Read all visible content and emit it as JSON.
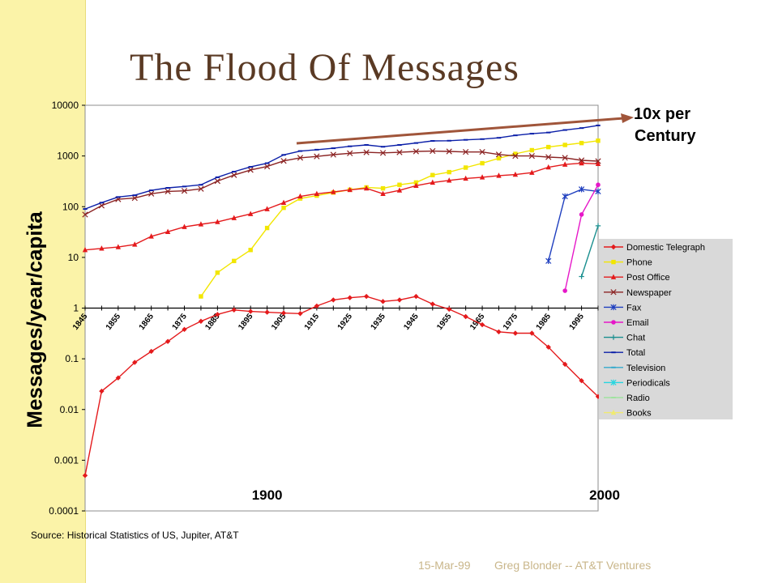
{
  "slide": {
    "title": "The Flood Of Messages",
    "source": "Source: Historical Statistics of US, Jupiter, AT&T",
    "date": "15-Mar-99",
    "author": "Greg Blonder -- AT&T Ventures",
    "annotation": [
      "10x per",
      "Century"
    ],
    "colors": {
      "band": "#fbf3a8",
      "title": "#5a3a24",
      "arrow": "#a0553a",
      "footer": "#c9b68a"
    }
  },
  "chart_data": {
    "type": "line",
    "ylabel": "Messages/year/capita",
    "yscale": "log",
    "ylim": [
      0.0001,
      10000
    ],
    "y_ticks": [
      "10000",
      "1000",
      "100",
      "10",
      "1",
      "0.1",
      "0.01",
      "0.001",
      "0.0001"
    ],
    "xlim": [
      1845,
      2000
    ],
    "x_ticks": [
      "1845",
      "1855",
      "1865",
      "1875",
      "1885",
      "1895",
      "1905",
      "1915",
      "1925",
      "1935",
      "1945",
      "1955",
      "1965",
      "1975",
      "1985",
      "1995"
    ],
    "x_big_labels": [
      "1900",
      "2000"
    ],
    "legend_position": "right",
    "series": [
      {
        "name": "Domestic Telegraph",
        "color": "#e41a1c",
        "marker": "diamond",
        "x": [
          1845,
          1850,
          1855,
          1860,
          1865,
          1870,
          1875,
          1880,
          1885,
          1890,
          1895,
          1900,
          1905,
          1910,
          1915,
          1920,
          1925,
          1930,
          1935,
          1940,
          1945,
          1950,
          1955,
          1960,
          1965,
          1970,
          1975,
          1980,
          1985,
          1990,
          1995,
          2000
        ],
        "y": [
          0.0005,
          0.023,
          0.042,
          0.085,
          0.14,
          0.22,
          0.38,
          0.55,
          0.75,
          0.92,
          0.86,
          0.83,
          0.8,
          0.78,
          1.1,
          1.45,
          1.6,
          1.7,
          1.35,
          1.45,
          1.7,
          1.2,
          0.95,
          0.68,
          0.47,
          0.34,
          0.32,
          0.32,
          0.17,
          0.078,
          0.037,
          0.018
        ]
      },
      {
        "name": "Phone",
        "color": "#f2e600",
        "marker": "square",
        "x": [
          1880,
          1885,
          1890,
          1895,
          1900,
          1905,
          1910,
          1915,
          1920,
          1925,
          1930,
          1935,
          1940,
          1945,
          1950,
          1955,
          1960,
          1965,
          1970,
          1975,
          1980,
          1985,
          1990,
          1995,
          2000
        ],
        "y": [
          1.7,
          5,
          8.5,
          14,
          38,
          95,
          145,
          165,
          190,
          215,
          240,
          230,
          270,
          300,
          420,
          480,
          590,
          720,
          900,
          1100,
          1300,
          1500,
          1650,
          1800,
          2000
        ]
      },
      {
        "name": "Post Office",
        "color": "#e41a1c",
        "marker": "triangle",
        "x": [
          1845,
          1850,
          1855,
          1860,
          1865,
          1870,
          1875,
          1880,
          1885,
          1890,
          1895,
          1900,
          1905,
          1910,
          1915,
          1920,
          1925,
          1930,
          1935,
          1940,
          1945,
          1950,
          1955,
          1960,
          1965,
          1970,
          1975,
          1980,
          1985,
          1990,
          1995,
          2000
        ],
        "y": [
          14,
          15,
          16,
          18,
          26,
          32,
          40,
          45,
          50,
          60,
          72,
          90,
          120,
          160,
          180,
          195,
          215,
          230,
          180,
          210,
          260,
          300,
          330,
          360,
          380,
          410,
          430,
          470,
          600,
          680,
          720,
          700
        ]
      },
      {
        "name": "Newspaper",
        "color": "#8b2323",
        "marker": "x",
        "x": [
          1845,
          1850,
          1855,
          1860,
          1865,
          1870,
          1875,
          1880,
          1885,
          1890,
          1895,
          1900,
          1905,
          1910,
          1915,
          1920,
          1925,
          1930,
          1935,
          1940,
          1945,
          1950,
          1955,
          1960,
          1965,
          1970,
          1975,
          1980,
          1985,
          1990,
          1995,
          2000
        ],
        "y": [
          70,
          105,
          140,
          148,
          180,
          200,
          205,
          225,
          320,
          420,
          530,
          620,
          800,
          920,
          980,
          1060,
          1130,
          1180,
          1150,
          1180,
          1230,
          1250,
          1230,
          1200,
          1200,
          1070,
          1000,
          1000,
          950,
          920,
          820,
          790
        ]
      },
      {
        "name": "Fax",
        "color": "#1f3fbf",
        "marker": "star",
        "x": [
          1985,
          1990,
          1995,
          2000
        ],
        "y": [
          8.5,
          160,
          220,
          200
        ]
      },
      {
        "name": "Email",
        "color": "#e617c8",
        "marker": "circle",
        "x": [
          1990,
          1995,
          2000
        ],
        "y": [
          2.2,
          70,
          270
        ]
      },
      {
        "name": "Chat",
        "color": "#1a8f8f",
        "marker": "plus",
        "x": [
          1995,
          2000
        ],
        "y": [
          4.2,
          42
        ]
      },
      {
        "name": "Total",
        "color": "#0b1fa8",
        "marker": "dash",
        "x": [
          1845,
          1850,
          1855,
          1860,
          1865,
          1870,
          1875,
          1880,
          1885,
          1890,
          1895,
          1900,
          1905,
          1910,
          1915,
          1920,
          1925,
          1930,
          1935,
          1940,
          1945,
          1950,
          1955,
          1960,
          1965,
          1970,
          1975,
          1980,
          1985,
          1990,
          1995,
          2000
        ],
        "y": [
          90,
          120,
          155,
          168,
          210,
          235,
          250,
          270,
          380,
          490,
          610,
          720,
          1050,
          1250,
          1330,
          1420,
          1550,
          1650,
          1520,
          1650,
          1800,
          1980,
          2000,
          2080,
          2150,
          2280,
          2550,
          2750,
          2900,
          3250,
          3550,
          4000
        ]
      },
      {
        "name": "Television",
        "color": "#33a9cc",
        "marker": "dash",
        "x": [],
        "y": []
      },
      {
        "name": "Periodicals",
        "color": "#28d6e0",
        "marker": "star",
        "x": [],
        "y": []
      },
      {
        "name": "Radio",
        "color": "#9fe39f",
        "marker": "dash",
        "x": [],
        "y": []
      },
      {
        "name": "Books",
        "color": "#f0ea70",
        "marker": "triangle",
        "x": [],
        "y": []
      }
    ]
  }
}
